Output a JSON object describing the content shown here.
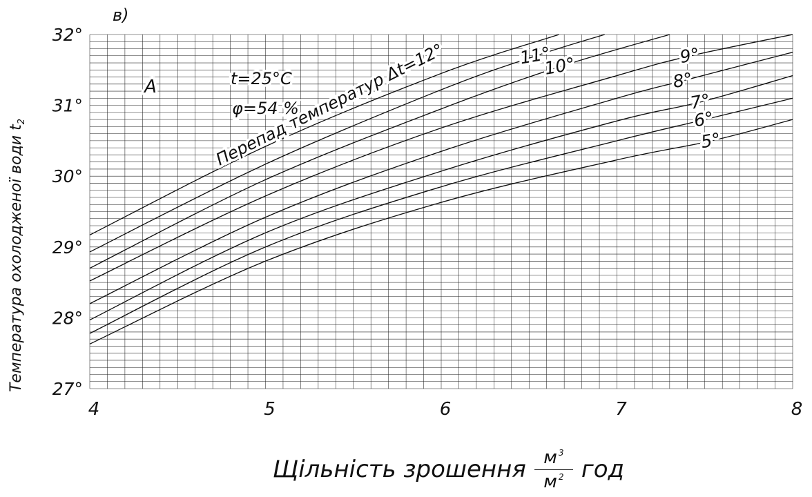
{
  "panel_label": "в)",
  "chart_data": {
    "type": "line",
    "xlabel": {
      "main": "Щільність зрошення",
      "numerator": "м",
      "numerator_exp": "3",
      "denominator": "м",
      "denominator_exp": "2",
      "suffix": "год"
    },
    "ylabel": "Температура охолодженої води t",
    "ylabel_sub": "2",
    "xlim": [
      4,
      8
    ],
    "ylim": [
      27,
      32
    ],
    "x_ticks": [
      "4",
      "5",
      "6",
      "7",
      "8"
    ],
    "y_ticks": [
      "27°",
      "28°",
      "29°",
      "30°",
      "31°",
      "32°"
    ],
    "grid": true,
    "annotations": {
      "region": "A",
      "temp": "t=25°C",
      "humidity": "φ=54 %",
      "curve_family": "Перепад температур Δt=12°"
    },
    "series": [
      {
        "name": "5°",
        "x": [
          4,
          5,
          6,
          7,
          7.54,
          8
        ],
        "y": [
          27.63,
          28.8,
          29.63,
          30.23,
          30.5,
          30.8
        ]
      },
      {
        "name": "6°",
        "x": [
          4,
          5,
          6,
          7,
          7.5,
          8
        ],
        "y": [
          27.78,
          29.0,
          29.85,
          30.5,
          30.8,
          31.1
        ]
      },
      {
        "name": "7°",
        "x": [
          4,
          5,
          6,
          7,
          7.48,
          8
        ],
        "y": [
          27.97,
          29.2,
          30.07,
          30.78,
          31.05,
          31.42
        ]
      },
      {
        "name": "8°",
        "x": [
          4,
          5,
          6,
          7,
          7.38,
          8
        ],
        "y": [
          28.2,
          29.42,
          30.35,
          31.1,
          31.35,
          31.75
        ]
      },
      {
        "name": "9°",
        "x": [
          4,
          5,
          6,
          7,
          7.42,
          8
        ],
        "y": [
          28.52,
          29.72,
          30.68,
          31.42,
          31.7,
          32.0
        ]
      },
      {
        "name": "10°",
        "x": [
          4,
          5,
          6,
          6.68,
          7.3
        ],
        "y": [
          28.7,
          29.95,
          30.95,
          31.55,
          32.0
        ]
      },
      {
        "name": "11°",
        "x": [
          4,
          5,
          6,
          6.54,
          6.93
        ],
        "y": [
          28.93,
          30.17,
          31.22,
          31.7,
          32.0
        ]
      },
      {
        "name": "12°",
        "x": [
          4,
          5,
          6,
          6.67
        ],
        "y": [
          29.17,
          30.42,
          31.45,
          32.0
        ]
      }
    ]
  }
}
